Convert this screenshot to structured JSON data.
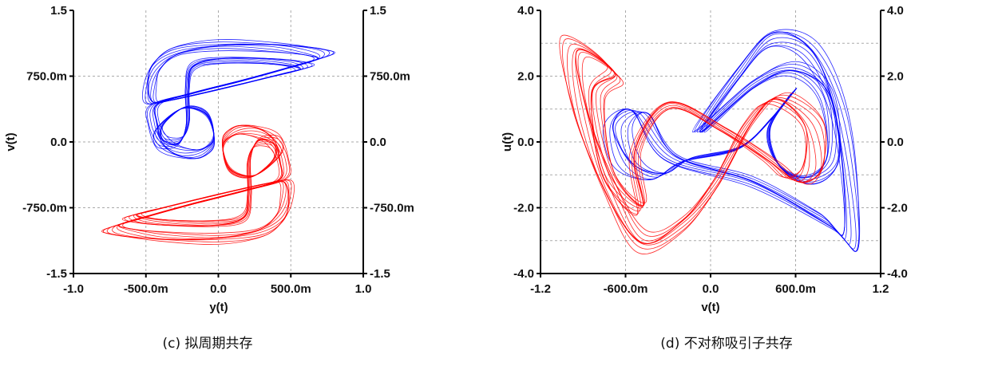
{
  "chart_data": [
    {
      "type": "line",
      "panel": "c",
      "caption": "(c) 拟周期共存",
      "xlabel": "y(t)",
      "ylabel": "v(t)",
      "xlim": [
        -1.0,
        1.0
      ],
      "ylim": [
        -1.5,
        1.5
      ],
      "xticks": [
        -1.0,
        -0.5,
        0.0,
        0.5,
        1.0
      ],
      "xtick_labels": [
        "-1.0",
        "-500.0m",
        "0.0",
        "500.0m",
        "1.0"
      ],
      "yticks": [
        1.5,
        0.75,
        0.0,
        -0.75,
        -1.5
      ],
      "ytick_labels": [
        "1.5",
        "750.0m",
        "0.0",
        "-750.0m",
        "-1.5"
      ],
      "xgrid": [
        -0.5,
        0.0,
        0.5
      ],
      "ygrid": [
        -0.75,
        0.0,
        0.75
      ],
      "grid": true,
      "series": [
        {
          "name": "blue",
          "color": "#0000ff",
          "points": [
            [
              -0.45,
              0.42
            ],
            [
              -0.2,
              0.55
            ],
            [
              0.2,
              0.72
            ],
            [
              0.55,
              0.88
            ],
            [
              0.75,
              0.98
            ],
            [
              0.7,
              1.05
            ],
            [
              0.4,
              1.12
            ],
            [
              0.0,
              1.13
            ],
            [
              -0.3,
              1.05
            ],
            [
              -0.45,
              0.88
            ],
            [
              -0.5,
              0.65
            ],
            [
              -0.48,
              0.45
            ],
            [
              -0.35,
              0.47
            ],
            [
              0.0,
              0.6
            ],
            [
              0.45,
              0.78
            ],
            [
              0.62,
              0.86
            ],
            [
              0.45,
              0.93
            ],
            [
              0.05,
              0.96
            ],
            [
              -0.18,
              0.88
            ],
            [
              -0.22,
              0.6
            ],
            [
              -0.22,
              0.2
            ],
            [
              -0.28,
              -0.03
            ],
            [
              -0.4,
              -0.02
            ],
            [
              -0.42,
              0.15
            ],
            [
              -0.25,
              0.38
            ],
            [
              -0.08,
              0.3
            ],
            [
              -0.03,
              0.0
            ],
            [
              -0.12,
              -0.16
            ],
            [
              -0.27,
              -0.17
            ],
            [
              -0.4,
              -0.05
            ],
            [
              -0.46,
              0.2
            ]
          ]
        },
        {
          "name": "red",
          "color": "#ff0000",
          "points": [
            [
              0.45,
              -0.42
            ],
            [
              0.2,
              -0.55
            ],
            [
              -0.2,
              -0.72
            ],
            [
              -0.55,
              -0.88
            ],
            [
              -0.75,
              -0.98
            ],
            [
              -0.7,
              -1.05
            ],
            [
              -0.4,
              -1.12
            ],
            [
              0.0,
              -1.13
            ],
            [
              0.3,
              -1.05
            ],
            [
              0.45,
              -0.88
            ],
            [
              0.5,
              -0.65
            ],
            [
              0.48,
              -0.45
            ],
            [
              0.35,
              -0.47
            ],
            [
              0.0,
              -0.6
            ],
            [
              -0.45,
              -0.78
            ],
            [
              -0.62,
              -0.86
            ],
            [
              -0.45,
              -0.93
            ],
            [
              -0.05,
              -0.96
            ],
            [
              0.18,
              -0.88
            ],
            [
              0.22,
              -0.6
            ],
            [
              0.22,
              -0.2
            ],
            [
              0.28,
              0.03
            ],
            [
              0.4,
              0.02
            ],
            [
              0.42,
              -0.15
            ],
            [
              0.25,
              -0.38
            ],
            [
              0.08,
              -0.3
            ],
            [
              0.03,
              0.0
            ],
            [
              0.12,
              0.16
            ],
            [
              0.27,
              0.17
            ],
            [
              0.4,
              0.05
            ],
            [
              0.46,
              -0.2
            ]
          ]
        }
      ]
    },
    {
      "type": "line",
      "panel": "d",
      "caption": "(d) 不对称吸引子共存",
      "xlabel": "v(t)",
      "ylabel": "u(t)",
      "xlim": [
        -1.2,
        1.2
      ],
      "ylim": [
        -4.0,
        4.0
      ],
      "xticks": [
        -1.2,
        -0.6,
        0.0,
        0.6,
        1.2
      ],
      "xtick_labels": [
        "-1.2",
        "-600.0m",
        "0.0",
        "600.0m",
        "1.2"
      ],
      "yticks": [
        4.0,
        2.0,
        0.0,
        -2.0,
        -4.0
      ],
      "ytick_labels": [
        "4.0",
        "2.0",
        "0.0",
        "-2.0",
        "-4.0"
      ],
      "xgrid": [
        -0.6,
        0.0,
        0.6
      ],
      "ygrid": [
        -3,
        -2,
        -1,
        0,
        1,
        2,
        3
      ],
      "grid": true,
      "series": [
        {
          "name": "blue",
          "color": "#0000ff",
          "points": [
            [
              -0.1,
              0.3
            ],
            [
              0.2,
              2.2
            ],
            [
              0.45,
              3.35
            ],
            [
              0.75,
              2.8
            ],
            [
              0.95,
              0.5
            ],
            [
              1.03,
              -3.1
            ],
            [
              0.85,
              -2.6
            ],
            [
              0.3,
              -1.3
            ],
            [
              -0.3,
              -0.5
            ],
            [
              -0.55,
              0.95
            ],
            [
              -0.72,
              0.5
            ],
            [
              -0.62,
              -0.7
            ],
            [
              -0.4,
              -1.1
            ],
            [
              -0.2,
              -0.6
            ],
            [
              0.2,
              -0.2
            ],
            [
              0.45,
              0.8
            ],
            [
              0.6,
              1.6
            ],
            [
              0.42,
              0.4
            ],
            [
              0.5,
              -0.8
            ],
            [
              0.72,
              -1.2
            ],
            [
              0.9,
              -0.5
            ],
            [
              0.85,
              1.5
            ],
            [
              0.6,
              2.3
            ],
            [
              0.3,
              1.8
            ]
          ]
        },
        {
          "name": "red",
          "color": "#ff0000",
          "points": [
            [
              -1.0,
              3.0
            ],
            [
              -0.95,
              1.0
            ],
            [
              -0.75,
              -1.5
            ],
            [
              -0.5,
              -3.2
            ],
            [
              -0.2,
              -2.6
            ],
            [
              0.05,
              -1.3
            ],
            [
              0.3,
              0.6
            ],
            [
              0.5,
              1.4
            ],
            [
              0.75,
              0.6
            ],
            [
              0.78,
              -0.8
            ],
            [
              0.65,
              -1.25
            ],
            [
              0.45,
              -0.6
            ],
            [
              0.1,
              0.4
            ],
            [
              -0.3,
              1.2
            ],
            [
              -0.55,
              -0.3
            ],
            [
              -0.5,
              -2.1
            ],
            [
              -0.75,
              -1.0
            ],
            [
              -0.85,
              1.5
            ],
            [
              -0.7,
              2.2
            ]
          ]
        }
      ]
    }
  ]
}
